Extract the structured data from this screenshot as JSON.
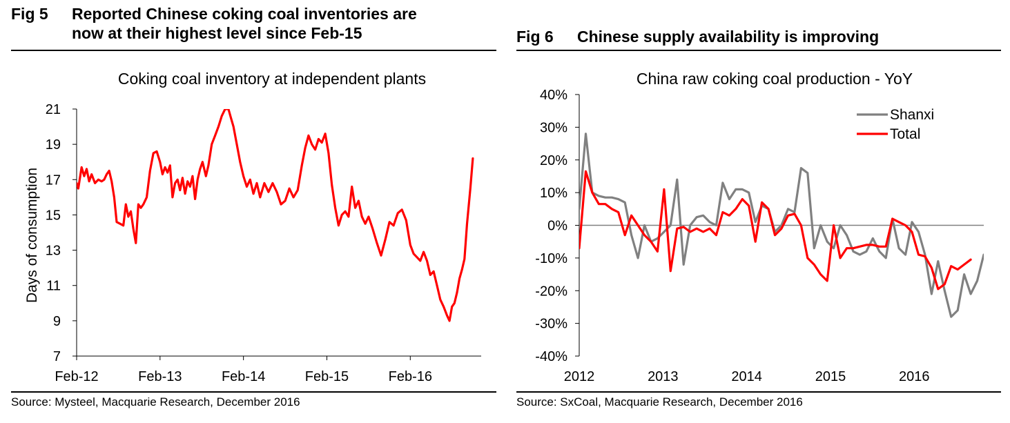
{
  "fig5": {
    "number": "Fig 5",
    "title_line1": "Reported Chinese coking coal inventories are",
    "title_line2": "now at their highest level since Feb-15",
    "source": "Source: Mysteel, Macquarie Research, December 2016"
  },
  "fig6": {
    "number": "Fig 6",
    "title": "Chinese supply availability is improving",
    "source": "Source: SxCoal, Macquarie Research, December 2016"
  },
  "chart_data": [
    {
      "type": "line",
      "title": "Coking coal inventory at independent plants",
      "ylabel": "Days of consumption",
      "xlabel": "",
      "ylim": [
        7,
        21
      ],
      "yticks": [
        7,
        9,
        11,
        13,
        15,
        17,
        19,
        21
      ],
      "xlim": [
        2012.0,
        2016.85
      ],
      "xticks": [
        {
          "value": 2012.0,
          "label": "Feb-12"
        },
        {
          "value": 2013.0,
          "label": "Feb-13"
        },
        {
          "value": 2014.0,
          "label": "Feb-14"
        },
        {
          "value": 2015.0,
          "label": "Feb-15"
        },
        {
          "value": 2016.0,
          "label": "Feb-16"
        }
      ],
      "grid": false,
      "series": [
        {
          "color": "#ff0000",
          "points": [
            [
              2012.0,
              16.8
            ],
            [
              2012.02,
              16.5
            ],
            [
              2012.06,
              17.7
            ],
            [
              2012.09,
              17.2
            ],
            [
              2012.12,
              17.6
            ],
            [
              2012.15,
              16.9
            ],
            [
              2012.18,
              17.3
            ],
            [
              2012.22,
              16.8
            ],
            [
              2012.26,
              17.0
            ],
            [
              2012.3,
              16.9
            ],
            [
              2012.33,
              17.0
            ],
            [
              2012.36,
              17.3
            ],
            [
              2012.39,
              17.5
            ],
            [
              2012.42,
              16.9
            ],
            [
              2012.45,
              16.0
            ],
            [
              2012.48,
              14.6
            ],
            [
              2012.52,
              14.5
            ],
            [
              2012.56,
              14.4
            ],
            [
              2012.59,
              15.6
            ],
            [
              2012.62,
              14.9
            ],
            [
              2012.65,
              15.2
            ],
            [
              2012.68,
              14.2
            ],
            [
              2012.71,
              13.4
            ],
            [
              2012.74,
              15.6
            ],
            [
              2012.77,
              15.4
            ],
            [
              2012.8,
              15.6
            ],
            [
              2012.84,
              16.0
            ],
            [
              2012.88,
              17.5
            ],
            [
              2012.92,
              18.5
            ],
            [
              2012.96,
              18.6
            ],
            [
              2013.0,
              18.0
            ],
            [
              2013.03,
              17.3
            ],
            [
              2013.06,
              17.7
            ],
            [
              2013.09,
              17.4
            ],
            [
              2013.12,
              17.8
            ],
            [
              2013.15,
              16.0
            ],
            [
              2013.18,
              16.8
            ],
            [
              2013.21,
              17.0
            ],
            [
              2013.24,
              16.4
            ],
            [
              2013.27,
              17.1
            ],
            [
              2013.3,
              16.2
            ],
            [
              2013.33,
              16.9
            ],
            [
              2013.36,
              16.6
            ],
            [
              2013.39,
              17.2
            ],
            [
              2013.42,
              15.9
            ],
            [
              2013.45,
              17.0
            ],
            [
              2013.48,
              17.6
            ],
            [
              2013.51,
              18.0
            ],
            [
              2013.55,
              17.2
            ],
            [
              2013.58,
              17.8
            ],
            [
              2013.62,
              19.0
            ],
            [
              2013.66,
              19.5
            ],
            [
              2013.7,
              20.0
            ],
            [
              2013.74,
              20.6
            ],
            [
              2013.78,
              21.0
            ],
            [
              2013.82,
              21.0
            ],
            [
              2013.85,
              20.5
            ],
            [
              2013.88,
              20.0
            ],
            [
              2013.92,
              19.0
            ],
            [
              2013.96,
              18.0
            ],
            [
              2014.0,
              17.2
            ],
            [
              2014.04,
              16.6
            ],
            [
              2014.08,
              17.0
            ],
            [
              2014.12,
              16.2
            ],
            [
              2014.16,
              16.8
            ],
            [
              2014.2,
              16.0
            ],
            [
              2014.25,
              16.8
            ],
            [
              2014.3,
              16.3
            ],
            [
              2014.35,
              16.8
            ],
            [
              2014.4,
              16.3
            ],
            [
              2014.45,
              15.6
            ],
            [
              2014.5,
              15.8
            ],
            [
              2014.55,
              16.5
            ],
            [
              2014.6,
              16.0
            ],
            [
              2014.65,
              16.4
            ],
            [
              2014.7,
              17.8
            ],
            [
              2014.74,
              18.8
            ],
            [
              2014.78,
              19.5
            ],
            [
              2014.82,
              19.0
            ],
            [
              2014.86,
              18.7
            ],
            [
              2014.9,
              19.3
            ],
            [
              2014.94,
              19.1
            ],
            [
              2014.98,
              19.6
            ],
            [
              2015.02,
              18.5
            ],
            [
              2015.06,
              16.7
            ],
            [
              2015.1,
              15.4
            ],
            [
              2015.14,
              14.4
            ],
            [
              2015.18,
              15.0
            ],
            [
              2015.22,
              15.2
            ],
            [
              2015.26,
              14.9
            ],
            [
              2015.3,
              16.6
            ],
            [
              2015.34,
              15.4
            ],
            [
              2015.38,
              15.8
            ],
            [
              2015.42,
              14.9
            ],
            [
              2015.46,
              14.5
            ],
            [
              2015.5,
              14.9
            ],
            [
              2015.55,
              14.2
            ],
            [
              2015.6,
              13.4
            ],
            [
              2015.65,
              12.7
            ],
            [
              2015.7,
              13.6
            ],
            [
              2015.75,
              14.6
            ],
            [
              2015.8,
              14.4
            ],
            [
              2015.85,
              15.1
            ],
            [
              2015.9,
              15.3
            ],
            [
              2015.95,
              14.7
            ],
            [
              2016.0,
              13.3
            ],
            [
              2016.04,
              12.8
            ],
            [
              2016.08,
              12.6
            ],
            [
              2016.12,
              12.4
            ],
            [
              2016.16,
              12.9
            ],
            [
              2016.2,
              12.4
            ],
            [
              2016.24,
              11.6
            ],
            [
              2016.28,
              11.8
            ],
            [
              2016.32,
              11.0
            ],
            [
              2016.36,
              10.2
            ],
            [
              2016.4,
              9.8
            ],
            [
              2016.44,
              9.3
            ],
            [
              2016.47,
              9.0
            ],
            [
              2016.5,
              9.8
            ],
            [
              2016.53,
              10.0
            ],
            [
              2016.56,
              10.6
            ],
            [
              2016.59,
              11.4
            ],
            [
              2016.62,
              11.9
            ],
            [
              2016.65,
              12.5
            ],
            [
              2016.68,
              14.5
            ],
            [
              2016.72,
              16.5
            ],
            [
              2016.75,
              18.2
            ]
          ]
        }
      ]
    },
    {
      "type": "line",
      "title": "China raw coking coal production - YoY",
      "xlabel": "",
      "ylabel": "",
      "ylim": [
        -40,
        40
      ],
      "yticks": [
        -40,
        -30,
        -20,
        -10,
        0,
        10,
        20,
        30,
        40
      ],
      "ytick_suffix": "%",
      "xlim": [
        2012.0,
        2016.83
      ],
      "xticks": [
        {
          "value": 2012.0,
          "label": "2012"
        },
        {
          "value": 2013.0,
          "label": "2013"
        },
        {
          "value": 2014.0,
          "label": "2014"
        },
        {
          "value": 2015.0,
          "label": "2015"
        },
        {
          "value": 2016.0,
          "label": "2016"
        }
      ],
      "zero_line": true,
      "grid": false,
      "legend": "top-right",
      "series": [
        {
          "name": "Shanxi",
          "color": "#808080",
          "values": [
            5,
            28,
            10,
            9,
            8.5,
            8.5,
            8,
            7,
            -3,
            -10,
            0,
            -5,
            -4,
            -2,
            0,
            14,
            -12,
            0,
            2.5,
            3,
            1,
            0,
            13,
            8,
            11,
            11,
            10,
            1,
            6,
            5,
            -2,
            0,
            5,
            4,
            17.5,
            16,
            -7,
            0,
            -5,
            -7,
            0,
            -3,
            -8,
            -9,
            -8,
            -4,
            -8,
            -10,
            2,
            -7,
            -9,
            1,
            -2,
            -9,
            -21,
            -11,
            -20,
            -28,
            -26,
            -15,
            -21,
            -17,
            -9
          ]
        },
        {
          "name": "Total",
          "color": "#ff0000",
          "values": [
            -7,
            16.5,
            10,
            6.5,
            6.5,
            5,
            4,
            -3,
            3,
            0,
            -3,
            -5,
            -8,
            11,
            -14,
            -1,
            -0.5,
            -2,
            -1,
            -2,
            -1,
            -3,
            4,
            3,
            5,
            8,
            6,
            -5,
            7,
            5,
            -3,
            -1,
            3,
            3.5,
            0,
            -10,
            -12,
            -15,
            -17,
            0,
            -10,
            -7,
            -7,
            -6.5,
            -6,
            -6,
            -6.5,
            -6.5,
            2,
            1,
            0,
            -2,
            -9,
            -9.5,
            -13,
            -19.5,
            -18,
            -12.5,
            -13.5,
            -12,
            -10.5
          ]
        }
      ]
    }
  ]
}
